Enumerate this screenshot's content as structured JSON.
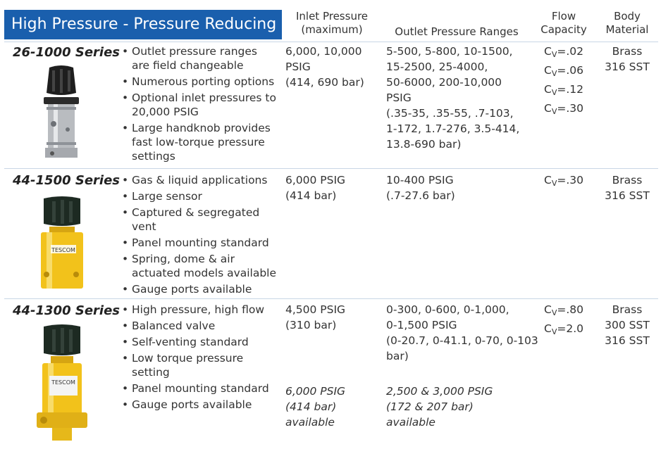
{
  "header": {
    "title": "High Pressure - Pressure Reducing",
    "columns": {
      "inlet_line1": "Inlet Pressure",
      "inlet_line2": "(maximum)",
      "outlet": "Outlet Pressure Ranges",
      "flow_line1": "Flow",
      "flow_line2": "Capacity",
      "body_line1": "Body",
      "body_line2": "Material"
    }
  },
  "rows": [
    {
      "series": "26-1000 Series",
      "features": [
        "Outlet pressure ranges are field changeable",
        "Numerous porting options",
        "Optional inlet pressures to 20,000 PSIG",
        "Large handknob provides fast low-torque pressure settings"
      ],
      "inlet": [
        "6,000, 10,000",
        "PSIG",
        "(414, 690 bar)"
      ],
      "outlet": [
        "5-500, 5-800, 10-1500,",
        "15-2500, 25-4000,",
        "50-6000, 200-10,000",
        "PSIG",
        "(.35-35, .35-55, .7-103,",
        "1-172, 1.7-276, 3.5-414,",
        "13.8-690 bar)"
      ],
      "flow": [
        "=.02",
        "=.06",
        "=.12",
        "=.30"
      ],
      "material": [
        "Brass",
        "316 SST"
      ]
    },
    {
      "series": "44-1500 Series",
      "features": [
        "Gas & liquid applications",
        "Large sensor",
        "Captured & segregated vent",
        "Panel mounting standard",
        "Spring, dome & air actuated models available",
        "Gauge ports available"
      ],
      "inlet": [
        "6,000 PSIG",
        "(414 bar)"
      ],
      "outlet": [
        "10-400 PSIG",
        "(.7-27.6 bar)"
      ],
      "flow": [
        "=.30"
      ],
      "material": [
        "Brass",
        "316 SST"
      ]
    },
    {
      "series": "44-1300 Series",
      "features": [
        "High pressure, high flow",
        "Balanced valve",
        "Self-venting standard",
        "Low torque pressure setting",
        "Panel mounting standard",
        "Gauge ports available"
      ],
      "inlet": [
        "4,500 PSIG",
        "(310 bar)"
      ],
      "inlet_optional": [
        "6,000 PSIG",
        "(414 bar)",
        "available"
      ],
      "outlet": [
        "0-300, 0-600, 0-1,000,",
        "0-1,500 PSIG",
        "(0-20.7, 0-41.1, 0-70, 0-103",
        "bar)"
      ],
      "outlet_optional": [
        "2,500 & 3,000 PSIG",
        "(172 & 207 bar)",
        "available"
      ],
      "flow": [
        "=.80",
        "=2.0"
      ],
      "material": [
        "Brass",
        "300 SST",
        "316 SST"
      ]
    }
  ],
  "cv": {
    "letter": "C",
    "sub": "V"
  },
  "photo_label": "TESCOM",
  "colors": {
    "header_blue": "#1a5fad",
    "rule": "#c8d6e5",
    "knob_black": "#1e1e1e",
    "brass_yellow": "#f2c21b",
    "steel_gray": "#b9bcc0",
    "knob_green_black": "#1d2a22"
  }
}
